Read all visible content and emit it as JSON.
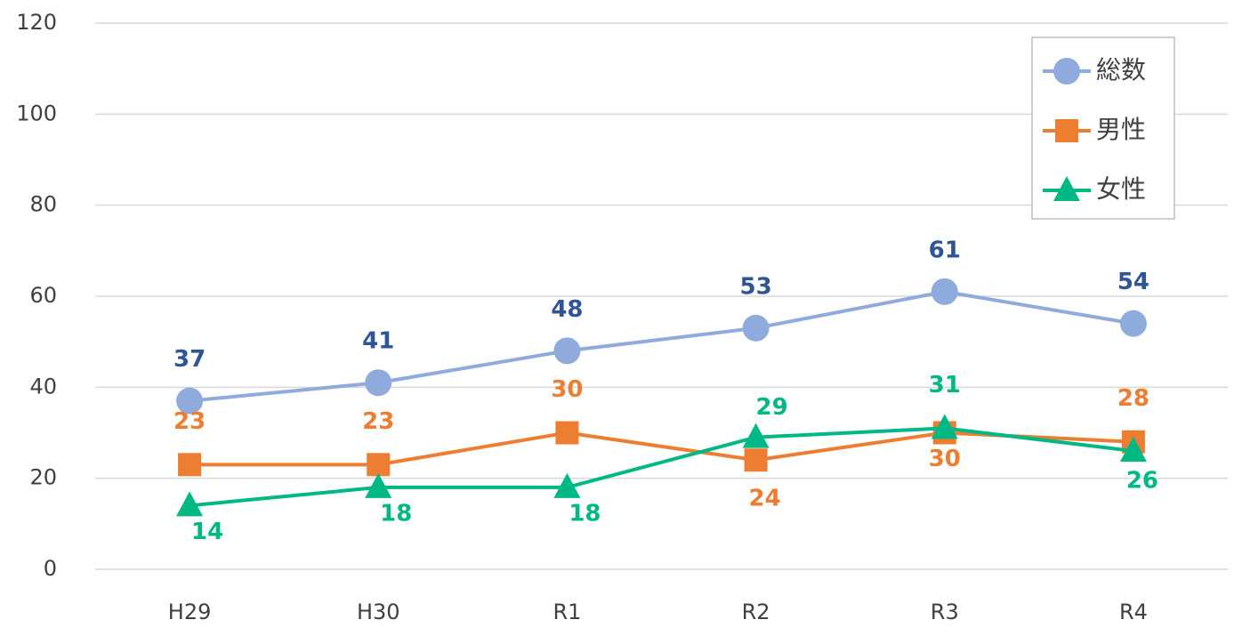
{
  "chart_data": {
    "type": "line",
    "categories": [
      "H29",
      "H30",
      "R1",
      "R2",
      "R3",
      "R4"
    ],
    "series": [
      {
        "name": "総数",
        "color": "#8faadc",
        "label_color": "#2f5597",
        "marker": "circle",
        "values": [
          37,
          41,
          48,
          53,
          61,
          54
        ]
      },
      {
        "name": "男性",
        "color": "#ed7d31",
        "label_color": "#ed7d31",
        "marker": "square",
        "values": [
          23,
          23,
          30,
          24,
          30,
          28
        ]
      },
      {
        "name": "女性",
        "color": "#00b884",
        "label_color": "#00b884",
        "marker": "triangle",
        "values": [
          14,
          18,
          18,
          29,
          31,
          26
        ]
      }
    ],
    "ylim": [
      0,
      120
    ],
    "yticks": [
      0,
      20,
      40,
      60,
      80,
      100,
      120
    ],
    "grid": true,
    "legend": "upper right"
  }
}
